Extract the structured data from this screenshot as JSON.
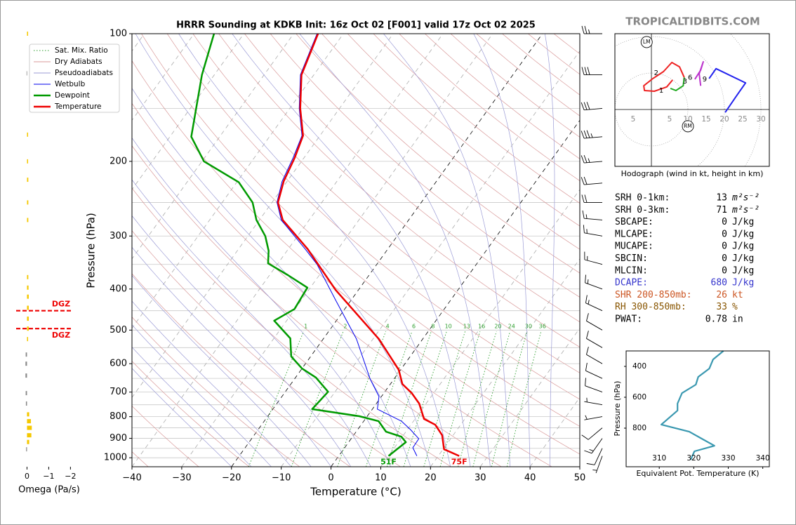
{
  "header": {
    "watermark": "TROPICALTIDBITS.COM"
  },
  "chart_data": [
    {
      "type": "skewt",
      "title": "HRRR Sounding at KDKB Init: 16z Oct 02 [F001] valid 17z Oct 02 2025",
      "x_label": "Temperature (°C)",
      "y_label": "Pressure (hPa)",
      "xlim": [
        -40,
        50
      ],
      "xticks": [
        {
          "value": -40,
          "label": "−40"
        },
        {
          "value": -30,
          "label": "−30"
        },
        {
          "value": -20,
          "label": "−20"
        },
        {
          "value": -10,
          "label": "−10"
        },
        0,
        10,
        20,
        30,
        40,
        50
      ],
      "ylim": [
        1050,
        100
      ],
      "log_scale": true,
      "yticks": [
        100,
        200,
        300,
        400,
        500,
        600,
        700,
        800,
        900,
        1000
      ],
      "yminor": [
        150,
        250,
        350,
        450,
        550,
        650,
        750,
        850,
        950
      ],
      "grid": true,
      "black_isotherms": [
        0,
        -20
      ],
      "legend": "upper left",
      "reference_lines": [
        {
          "name": "Sat. Mix. Ratio",
          "color": "#2e9e2e",
          "dash": "dotted"
        },
        {
          "name": "Dry Adiabats",
          "color": "#d99a9a",
          "dash": "solid"
        },
        {
          "name": "Pseudoadiabats",
          "color": "#9b9bd6",
          "dash": "solid"
        }
      ],
      "mixing_ratio_lines": [
        1,
        2,
        4,
        6,
        8,
        10,
        13,
        16,
        20,
        24,
        30,
        36
      ],
      "series": [
        {
          "name": "Wetbulb",
          "color": "#0000ee",
          "width": 1,
          "pressure": [
            990,
            947,
            902,
            858,
            820,
            768,
            717,
            652,
            525,
            424,
            350,
            322,
            275,
            250,
            223,
            196,
            174,
            150,
            125,
            100
          ],
          "values": [
            15.7,
            13.7,
            13.6,
            10.6,
            7.6,
            1.0,
            -0.5,
            -4.8,
            -13.3,
            -23.2,
            -32.0,
            -36.6,
            -45.6,
            -49.0,
            -51.0,
            -52.2,
            -53.6,
            -58.1,
            -62.7,
            -65.3
          ]
        },
        {
          "name": "Dewpoint",
          "color": "#009a00",
          "width": 2.5,
          "surface_label": "51F",
          "pressure": [
            990,
            919,
            892,
            868,
            820,
            798,
            768,
            699,
            647,
            616,
            577,
            523,
            475,
            446,
            397,
            371,
            348,
            325,
            300,
            275,
            250,
            224,
            200,
            175,
            125,
            100
          ],
          "values": [
            10.0,
            11.5,
            9.8,
            6.0,
            3.0,
            -1.6,
            -12.1,
            -11.4,
            -15.9,
            -20.0,
            -23.9,
            -26.7,
            -32.5,
            -30.1,
            -30.6,
            -36.3,
            -42.0,
            -43.7,
            -46.5,
            -50.6,
            -53.9,
            -59.6,
            -69.6,
            -75.7,
            -82.5,
            -86.0
          ]
        },
        {
          "name": "Temperature",
          "color": "#ee0000",
          "width": 2.5,
          "surface_label": "75F",
          "pressure": [
            990,
            955,
            885,
            836,
            810,
            745,
            704,
            670,
            620,
            525,
            472,
            402,
            322,
            275,
            250,
            223,
            196,
            174,
            150,
            125,
            100
          ],
          "values": [
            24.2,
            20.2,
            17.8,
            14.9,
            11.8,
            8.6,
            5.6,
            2.4,
            -0.4,
            -8.8,
            -15.1,
            -24.6,
            -36.1,
            -45.3,
            -48.8,
            -50.7,
            -51.9,
            -53.4,
            -57.9,
            -62.5,
            -65.1
          ]
        }
      ],
      "wind": {
        "pressure": [
          100,
          125,
          150,
          175,
          200,
          225,
          250,
          275,
          300,
          350,
          400,
          450,
          500,
          550,
          600,
          650,
          700,
          750,
          800,
          850,
          900,
          950,
          990
        ],
        "direction": [
          270,
          270,
          265,
          265,
          265,
          265,
          270,
          275,
          280,
          285,
          290,
          295,
          300,
          300,
          300,
          295,
          290,
          280,
          260,
          230,
          215,
          205,
          200
        ],
        "speed": [
          25,
          30,
          30,
          35,
          25,
          20,
          20,
          15,
          15,
          15,
          15,
          15,
          10,
          10,
          10,
          10,
          10,
          5,
          5,
          10,
          15,
          10,
          5
        ]
      }
    },
    {
      "type": "omega",
      "x_label": "Omega (Pa/s)",
      "xlim": [
        0.5,
        -2.15
      ],
      "xticks": [
        0,
        {
          "value": -1,
          "label": "−1"
        },
        {
          "value": -2,
          "label": "−2"
        }
      ],
      "ylim": [
        1050,
        100
      ],
      "colors": {
        "negative": "#f5c800",
        "positive": "#888888"
      },
      "pressure": [
        100,
        124,
        173,
        200,
        221,
        250,
        275,
        375,
        397,
        417,
        443,
        470,
        496,
        525,
        571,
        600,
        640,
        704,
        745,
        790,
        820,
        850,
        885,
        918,
        955
      ],
      "values": [
        -0.05,
        0.02,
        -0.05,
        -0.05,
        -0.06,
        -0.06,
        -0.06,
        -0.06,
        -0.07,
        -0.08,
        -0.08,
        -0.08,
        -0.08,
        -0.05,
        0.06,
        0.07,
        0.07,
        0.06,
        0.05,
        -0.1,
        -0.18,
        -0.22,
        -0.2,
        -0.1,
        0.04
      ],
      "dgz": {
        "pressure": [
          450,
          496
        ],
        "labels": [
          "DGZ",
          "DGZ"
        ],
        "color": "#ee0000"
      }
    },
    {
      "type": "hodograph",
      "caption": "Hodograph (wind in kt, height in km)",
      "xlim": [
        -10,
        32.3
      ],
      "ylim": [
        -15.6,
        20.8
      ],
      "xticks": [
        {
          "value": -5,
          "label": "5"
        },
        5,
        10,
        15,
        20,
        25,
        30
      ],
      "rings": [
        10,
        20,
        30,
        40
      ],
      "segments": [
        {
          "color": "#ee2222",
          "u": [
            5.8,
            4.2,
            0.8,
            -1.9,
            -2.1,
            0.4,
            3.3,
            5.6,
            7.7,
            9.0
          ],
          "v": [
            8.1,
            6.2,
            5.0,
            5.2,
            6.5,
            8.5,
            10.4,
            12.9,
            11.7,
            8.8
          ]
        },
        {
          "color": "#22aa22",
          "u": [
            9.0,
            8.7,
            6.7,
            5.2
          ],
          "v": [
            8.8,
            6.5,
            5.2,
            5.8
          ]
        },
        {
          "color": "#bb33cc",
          "u": [
            11.9,
            13.5,
            14.2,
            13.1,
            13.5
          ],
          "v": [
            8.3,
            10.8,
            13.1,
            9.8,
            6.5
          ]
        },
        {
          "color": "#2222ee",
          "u": [
            15.8,
            17.7,
            25.8,
            23.5,
            20.2
          ],
          "v": [
            8.5,
            11.2,
            7.3,
            4.0,
            -0.8
          ]
        }
      ],
      "height_labels": {
        "labels": [
          1,
          2,
          3,
          6,
          9
        ],
        "u": [
          2.7,
          1.3,
          9.2,
          10.6,
          14.6
        ],
        "v": [
          5.2,
          10.0,
          7.7,
          8.8,
          8.3
        ]
      },
      "storm_motion": [
        {
          "label": "LM",
          "u": -1.3,
          "v": 18.5
        },
        {
          "label": "RM",
          "u": 10.0,
          "v": -4.6
        }
      ]
    },
    {
      "type": "thetae",
      "x_label": "Equivalent Pot. Temperature (K)",
      "y_label": "Pressure (hPa)",
      "xlim": [
        300.4,
        341.9
      ],
      "xticks": [
        310,
        320,
        330,
        340
      ],
      "ylim": [
        1050,
        300
      ],
      "yticks": [
        400,
        600,
        800
      ],
      "series": [
        {
          "color": "#3a98b0",
          "pressure": [
            300,
            355,
            414,
            468,
            518,
            573,
            641,
            686,
            777,
            823,
            868,
            914,
            950,
            1005
          ],
          "values": [
            328.6,
            325.6,
            324.5,
            321.3,
            320.6,
            316.6,
            315.3,
            315.3,
            310.6,
            318.7,
            322.3,
            326.0,
            320.2,
            319.1
          ]
        }
      ]
    }
  ],
  "parameters": {
    "rows": [
      {
        "label": "SRH 0-1km:",
        "value": 13,
        "unit": "m²s⁻²",
        "color": "#000000"
      },
      {
        "label": "SRH 0-3km:",
        "value": 71,
        "unit": "m²s⁻²",
        "color": "#000000"
      },
      {
        "label": "SBCAPE:",
        "value": 0,
        "unit": "J/kg",
        "color": "#000000"
      },
      {
        "label": "MLCAPE:",
        "value": 0,
        "unit": "J/kg",
        "color": "#000000"
      },
      {
        "label": "MUCAPE:",
        "value": 0,
        "unit": "J/kg",
        "color": "#000000"
      },
      {
        "label": "SBCIN:",
        "value": 0,
        "unit": "J/kg",
        "color": "#000000"
      },
      {
        "label": "MLCIN:",
        "value": 0,
        "unit": "J/kg",
        "color": "#000000"
      },
      {
        "label": "DCAPE:",
        "value": 680,
        "unit": "J/kg",
        "color": "#3333cc"
      },
      {
        "label": "SHR 200-850mb:",
        "value": 26,
        "unit": "kt",
        "color": "#cc5522"
      },
      {
        "label": "RH 300-850mb:",
        "value": 33,
        "unit": "%",
        "color": "#885500"
      },
      {
        "label": "PWAT:",
        "value": 0.78,
        "unit": "in",
        "color": "#000000"
      }
    ]
  }
}
